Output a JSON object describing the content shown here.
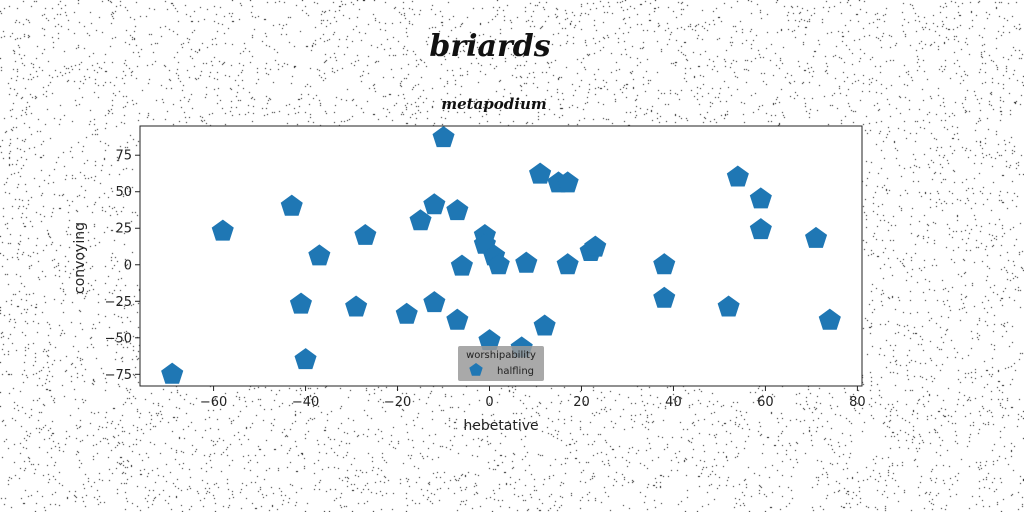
{
  "chart_data": {
    "type": "scatter",
    "title": "briards",
    "subtitle": "metapodium",
    "xlabel": "hebetative",
    "ylabel": "convoying",
    "xlim": [
      -76,
      81
    ],
    "ylim": [
      -83,
      95
    ],
    "xticks": [
      -60,
      -40,
      -20,
      0,
      20,
      40,
      60,
      80
    ],
    "yticks": [
      -75,
      -50,
      -25,
      0,
      25,
      50,
      75
    ],
    "xtick_labels": [
      "−60",
      "−40",
      "−20",
      "0",
      "20",
      "40",
      "60",
      "80"
    ],
    "ytick_labels": [
      "−75",
      "−50",
      "−25",
      "0",
      "25",
      "50",
      "75"
    ],
    "grid": false,
    "legend": {
      "title": "worshipability",
      "placement": "lower-center"
    },
    "marker": "pentagon",
    "color": "#1f77b4",
    "series": [
      {
        "name": "halfling",
        "points": [
          [
            -69,
            -75
          ],
          [
            -58,
            23
          ],
          [
            -43,
            40
          ],
          [
            -41,
            -27
          ],
          [
            -40,
            -65
          ],
          [
            -37,
            6
          ],
          [
            -29,
            -29
          ],
          [
            -27,
            20
          ],
          [
            -18,
            -34
          ],
          [
            -15,
            30
          ],
          [
            -12,
            41
          ],
          [
            -12,
            -26
          ],
          [
            -10,
            87
          ],
          [
            -7,
            37
          ],
          [
            -7,
            -38
          ],
          [
            -6,
            -1
          ],
          [
            -1,
            20
          ],
          [
            -1,
            14
          ],
          [
            0,
            -52
          ],
          [
            1,
            6
          ],
          [
            2,
            0
          ],
          [
            8,
            1
          ],
          [
            7,
            -57
          ],
          [
            11,
            62
          ],
          [
            12,
            -42
          ],
          [
            15,
            56
          ],
          [
            17,
            56
          ],
          [
            17,
            0
          ],
          [
            22,
            9
          ],
          [
            23,
            12
          ],
          [
            38,
            0
          ],
          [
            38,
            -23
          ],
          [
            52,
            -29
          ],
          [
            54,
            60
          ],
          [
            59,
            45
          ],
          [
            59,
            24
          ],
          [
            71,
            18
          ],
          [
            74,
            -38
          ]
        ]
      }
    ]
  }
}
